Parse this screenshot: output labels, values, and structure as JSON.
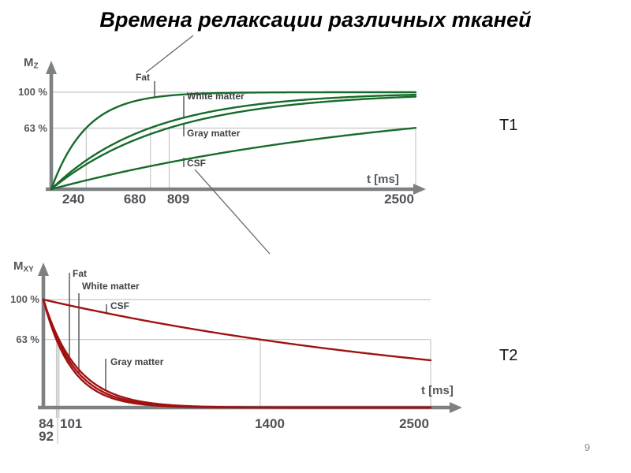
{
  "slide": {
    "title": "Времена релаксации различных тканей",
    "page_number": "9"
  },
  "chart_data": [
    {
      "id": "t1",
      "type": "line",
      "side_label": "T1",
      "description": "T1 relaxation (longitudinal magnetization recovery) of different tissues",
      "model": "recovery",
      "model_formula": "M(t) = 1 - exp(-t/T1), M = 63 % at t = T1",
      "y_axis_label": {
        "main": "M",
        "sub": "Z"
      },
      "x_axis_label": {
        "var": "t",
        "unit": "[ms]"
      },
      "y_unit": "%",
      "x_range_ms": [
        0,
        2500
      ],
      "y_ticks": [
        {
          "label": "100 %",
          "value": 100
        },
        {
          "label": "63 %",
          "value": 63
        }
      ],
      "x_ticks": [
        {
          "label": "240",
          "value": 240
        },
        {
          "label": "680",
          "value": 680
        },
        {
          "label": "809",
          "value": 809
        },
        {
          "label": "2500",
          "value": 2500
        }
      ],
      "series": [
        {
          "name": "Fat",
          "T_ms": 240
        },
        {
          "name": "White matter",
          "T_ms": 680
        },
        {
          "name": "Gray matter",
          "T_ms": 809
        },
        {
          "name": "CSF",
          "T_ms": 2500
        }
      ],
      "curve_color": "#166b2b",
      "grid": true
    },
    {
      "id": "t2",
      "type": "line",
      "side_label": "T2",
      "description": "T2 relaxation (transverse magnetization decay) of different tissues",
      "model": "decay",
      "model_formula": "M(t) = 0.63^(t/T2), M = 63 % at t = T2",
      "y_axis_label": {
        "main": "M",
        "sub": "XY"
      },
      "x_axis_label": {
        "var": "t",
        "unit": "[ms]"
      },
      "y_unit": "%",
      "x_range_ms": [
        0,
        2500
      ],
      "y_ticks": [
        {
          "label": "100 %",
          "value": 100
        },
        {
          "label": "63 %",
          "value": 63
        }
      ],
      "x_ticks": [
        {
          "label": "84",
          "value": 84
        },
        {
          "label": "92",
          "value": 92
        },
        {
          "label": "101",
          "value": 101
        },
        {
          "label": "1400",
          "value": 1400
        },
        {
          "label": "2500",
          "value": 2500
        }
      ],
      "series": [
        {
          "name": "Fat",
          "T_ms": 84
        },
        {
          "name": "White matter",
          "T_ms": 92
        },
        {
          "name": "Gray matter",
          "T_ms": 101
        },
        {
          "name": "CSF",
          "T_ms": 1400
        }
      ],
      "curve_color": "#a01111",
      "grid": true
    }
  ]
}
